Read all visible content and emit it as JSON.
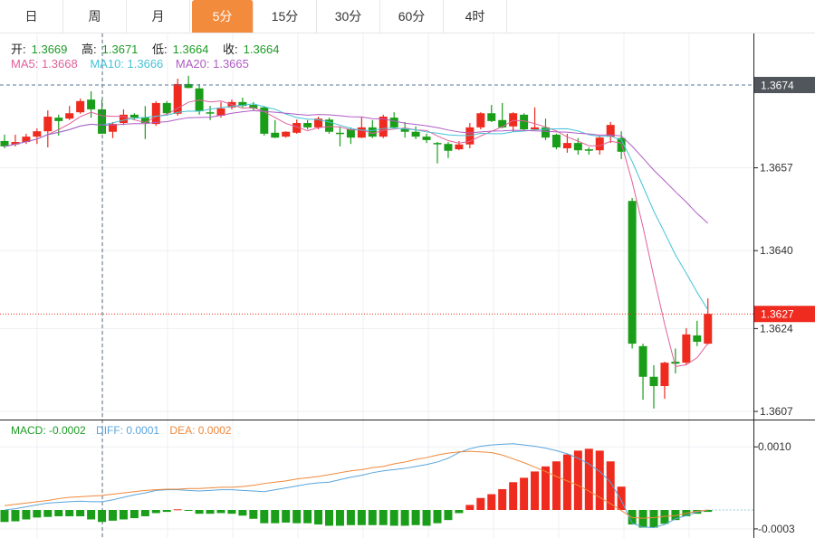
{
  "tabs": [
    {
      "label": "日"
    },
    {
      "label": "周"
    },
    {
      "label": "月"
    },
    {
      "label": "5分",
      "active": true
    },
    {
      "label": "15分"
    },
    {
      "label": "30分"
    },
    {
      "label": "60分"
    },
    {
      "label": "4时"
    }
  ],
  "ohlc_header": {
    "open_label": "开:",
    "open": "1.3669",
    "high_label": "高:",
    "high": "1.3671",
    "low_label": "低:",
    "low": "1.3664",
    "close_label": "收:",
    "close": "1.3664"
  },
  "ma_header": {
    "ma5": "MA5: 1.3668",
    "ma10": "MA10: 1.3666",
    "ma20": "MA20: 1.3665"
  },
  "macd_header": {
    "macd": "MACD: -0.0002",
    "diff": "DIFF: 0.0001",
    "dea": "DEA: 0.0002"
  },
  "colors": {
    "up": "#ee2b1e",
    "down": "#1a9e1a",
    "accent": "#f28b3c",
    "ma5": "#e0609a",
    "ma10": "#45c3d8",
    "ma20": "#b05cc4",
    "diff": "#5aa5dc",
    "dea": "#f0883a",
    "crosshair_label_bg": "#50565c"
  },
  "chart_data": [
    {
      "type": "candlestick",
      "title": "5分",
      "ylim": [
        1.36055,
        1.36825
      ],
      "y_ticks": [
        "1.3657",
        "1.3640",
        "1.3624",
        "1.3607"
      ],
      "y_tick_values": [
        1.3657,
        1.364,
        1.3624,
        1.3607
      ],
      "crosshair": {
        "price": 1.3674,
        "label": "1.3674",
        "index": 9
      },
      "last_price": {
        "price": 1.3627,
        "label": "1.3627"
      },
      "moving_averages": [
        5,
        10,
        20
      ],
      "candles": [
        [
          1.36625,
          1.36638,
          1.3661,
          1.36614
        ],
        [
          1.36618,
          1.36638,
          1.36614,
          1.36623
        ],
        [
          1.36623,
          1.3664,
          1.36619,
          1.36634
        ],
        [
          1.36634,
          1.36651,
          1.36619,
          1.36645
        ],
        [
          1.36645,
          1.36688,
          1.36612,
          1.36675
        ],
        [
          1.36673,
          1.36679,
          1.36636,
          1.36666
        ],
        [
          1.36671,
          1.36697,
          1.36668,
          1.36682
        ],
        [
          1.36684,
          1.36712,
          1.36681,
          1.36707
        ],
        [
          1.3671,
          1.36727,
          1.36673,
          1.3669
        ],
        [
          1.3669,
          1.3671,
          1.3664,
          1.3664
        ],
        [
          1.36644,
          1.36664,
          1.36631,
          1.3666
        ],
        [
          1.36662,
          1.3669,
          1.36658,
          1.36679
        ],
        [
          1.36679,
          1.36682,
          1.36669,
          1.36673
        ],
        [
          1.36673,
          1.36697,
          1.36629,
          1.36662
        ],
        [
          1.3666,
          1.36707,
          1.36656,
          1.36703
        ],
        [
          1.36703,
          1.36707,
          1.36679,
          1.36682
        ],
        [
          1.36681,
          1.36753,
          1.36677,
          1.36742
        ],
        [
          1.36742,
          1.36759,
          1.36733,
          1.36734
        ],
        [
          1.36733,
          1.36742,
          1.36679,
          1.36686
        ],
        [
          1.36684,
          1.36697,
          1.36668,
          1.36682
        ],
        [
          1.36677,
          1.36705,
          1.36673,
          1.36692
        ],
        [
          1.36694,
          1.3671,
          1.3669,
          1.36705
        ],
        [
          1.36705,
          1.36714,
          1.36694,
          1.36697
        ],
        [
          1.36699,
          1.36705,
          1.36688,
          1.36692
        ],
        [
          1.36694,
          1.36697,
          1.36636,
          1.3664
        ],
        [
          1.36642,
          1.36668,
          1.36631,
          1.36632
        ],
        [
          1.36634,
          1.36645,
          1.36632,
          1.36644
        ],
        [
          1.36642,
          1.36669,
          1.3664,
          1.36662
        ],
        [
          1.36662,
          1.36668,
          1.36649,
          1.36653
        ],
        [
          1.36653,
          1.36675,
          1.36649,
          1.36671
        ],
        [
          1.36669,
          1.36673,
          1.3664,
          1.36644
        ],
        [
          1.36642,
          1.36655,
          1.36614,
          1.3664
        ],
        [
          1.36649,
          1.36653,
          1.36619,
          1.36632
        ],
        [
          1.36632,
          1.36675,
          1.36631,
          1.36653
        ],
        [
          1.36653,
          1.36668,
          1.36631,
          1.36634
        ],
        [
          1.36634,
          1.36679,
          1.36631,
          1.36675
        ],
        [
          1.36673,
          1.36684,
          1.36651,
          1.36653
        ],
        [
          1.36651,
          1.36664,
          1.36632,
          1.36644
        ],
        [
          1.36644,
          1.36655,
          1.36629,
          1.36634
        ],
        [
          1.36634,
          1.3664,
          1.36621,
          1.36627
        ],
        [
          1.36621,
          1.36623,
          1.36579,
          1.36619
        ],
        [
          1.36619,
          1.36623,
          1.3659,
          1.36605
        ],
        [
          1.36608,
          1.36625,
          1.36606,
          1.36618
        ],
        [
          1.36618,
          1.36662,
          1.3661,
          1.36653
        ],
        [
          1.36653,
          1.36684,
          1.36649,
          1.36682
        ],
        [
          1.36682,
          1.36699,
          1.36664,
          1.36666
        ],
        [
          1.36668,
          1.36703,
          1.36651,
          1.36653
        ],
        [
          1.36655,
          1.36684,
          1.36644,
          1.36682
        ],
        [
          1.36679,
          1.36682,
          1.36645,
          1.36649
        ],
        [
          1.36649,
          1.36694,
          1.36647,
          1.36653
        ],
        [
          1.36653,
          1.36671,
          1.36627,
          1.36632
        ],
        [
          1.36638,
          1.3664,
          1.36608,
          1.36612
        ],
        [
          1.3661,
          1.3664,
          1.36601,
          1.36621
        ],
        [
          1.36621,
          1.36631,
          1.36597,
          1.36606
        ],
        [
          1.36608,
          1.36612,
          1.36597,
          1.36605
        ],
        [
          1.36606,
          1.36636,
          1.36597,
          1.36632
        ],
        [
          1.36634,
          1.36664,
          1.36621,
          1.36658
        ],
        [
          1.36631,
          1.36645,
          1.36588,
          1.36603
        ],
        [
          1.36502,
          1.36508,
          1.36199,
          1.36209
        ],
        [
          1.36204,
          1.36209,
          1.36094,
          1.36141
        ],
        [
          1.36141,
          1.36165,
          1.36076,
          1.36122
        ],
        [
          1.36122,
          1.36172,
          1.36096,
          1.3617
        ],
        [
          1.36172,
          1.36199,
          1.36148,
          1.36168
        ],
        [
          1.3617,
          1.36241,
          1.36165,
          1.36228
        ],
        [
          1.36226,
          1.36256,
          1.36204,
          1.36213
        ],
        [
          1.36209,
          1.36302,
          1.36207,
          1.3627
        ]
      ]
    },
    {
      "type": "macd",
      "ylim": [
        -0.0003,
        0.001
      ],
      "y_ticks": [
        "0.0010",
        "-0.0003"
      ],
      "y_tick_values": [
        0.001,
        -0.0003
      ],
      "histogram": [
        -0.00019,
        -0.00018,
        -0.00015,
        -0.00012,
        -0.00011,
        -0.0001,
        -0.0001,
        -0.0001,
        -0.00015,
        -0.00019,
        -0.00017,
        -0.00015,
        -0.00013,
        -0.0001,
        -5e-05,
        -3e-05,
        1e-05,
        -1e-05,
        -6e-05,
        -6e-05,
        -5e-05,
        -6e-05,
        -9e-05,
        -0.00014,
        -0.00021,
        -0.00021,
        -0.0002,
        -0.00021,
        -0.00021,
        -0.00023,
        -0.00025,
        -0.00025,
        -0.00024,
        -0.00024,
        -0.00024,
        -0.00024,
        -0.00025,
        -0.00025,
        -0.00024,
        -0.00025,
        -0.00021,
        -0.00016,
        -5e-05,
        8e-05,
        0.00019,
        0.00025,
        0.00033,
        0.00044,
        0.00051,
        0.00061,
        0.00069,
        0.00077,
        0.00088,
        0.00094,
        0.00097,
        0.00094,
        0.00077,
        0.00037,
        -0.00023,
        -0.00028,
        -0.00028,
        -0.00022,
        -0.00016,
        -0.0001,
        -6e-05,
        -3e-05
      ],
      "diff": [
        0.0,
        2e-05,
        5e-05,
        8e-05,
        0.00011,
        0.00012,
        0.00013,
        0.00014,
        0.00013,
        0.00013,
        0.00016,
        0.0002,
        0.00024,
        0.00027,
        0.00031,
        0.00032,
        0.00032,
        0.00031,
        0.0003,
        0.00031,
        0.00032,
        0.00032,
        0.00031,
        0.0003,
        0.00029,
        0.00032,
        0.00035,
        0.00038,
        0.00041,
        0.00043,
        0.00044,
        0.00048,
        0.00052,
        0.00055,
        0.00059,
        0.00062,
        0.00064,
        0.00066,
        0.00069,
        0.00072,
        0.00076,
        0.00082,
        0.00091,
        0.00097,
        0.00101,
        0.00103,
        0.00104,
        0.00105,
        0.00103,
        0.00101,
        0.00098,
        0.00094,
        0.00089,
        0.00082,
        0.00073,
        0.00061,
        0.00044,
        0.00015,
        -0.00021,
        -0.00027,
        -0.00028,
        -0.00023,
        -0.00014,
        -9e-05,
        -3e-05,
        0.0
      ],
      "dea": [
        7e-05,
        9e-05,
        0.00011,
        0.00013,
        0.00015,
        0.00018,
        0.0002,
        0.00021,
        0.00022,
        0.00023,
        0.00025,
        0.00027,
        0.00029,
        0.00031,
        0.00032,
        0.00033,
        0.00033,
        0.00034,
        0.00034,
        0.00035,
        0.00036,
        0.00036,
        0.00037,
        0.00039,
        0.00042,
        0.00044,
        0.00046,
        0.00049,
        0.00051,
        0.00053,
        0.00056,
        0.00059,
        0.00062,
        0.00064,
        0.00067,
        0.00069,
        0.00073,
        0.00076,
        0.0008,
        0.00083,
        0.00087,
        0.0009,
        0.00092,
        0.00093,
        0.00092,
        0.00091,
        0.00087,
        0.00081,
        0.00075,
        0.00068,
        0.00061,
        0.00053,
        0.00046,
        0.00039,
        0.0003,
        0.0002,
        0.0001,
        -1e-05,
        -0.00012,
        -0.00013,
        -0.00012,
        -0.0001,
        -9e-05,
        -5e-05,
        -2e-05,
        0.0
      ]
    }
  ]
}
